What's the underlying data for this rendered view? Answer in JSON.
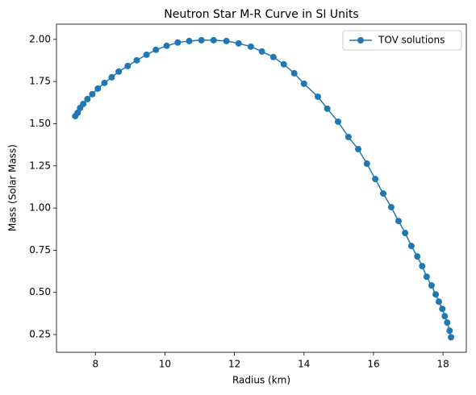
{
  "chart_data": {
    "type": "line",
    "title": "Neutron Star M-R Curve in SI Units",
    "xlabel": "Radius (km)",
    "ylabel": "Mass (Solar Mass)",
    "x": [
      7.42,
      7.49,
      7.56,
      7.65,
      7.77,
      7.91,
      8.07,
      8.26,
      8.47,
      8.67,
      8.93,
      9.19,
      9.47,
      9.74,
      10.05,
      10.37,
      10.7,
      11.05,
      11.4,
      11.77,
      12.12,
      12.47,
      12.79,
      13.12,
      13.42,
      13.72,
      14.0,
      14.4,
      14.67,
      14.98,
      15.28,
      15.56,
      15.81,
      16.05,
      16.28,
      16.51,
      16.72,
      16.91,
      17.09,
      17.26,
      17.4,
      17.53,
      17.67,
      17.79,
      17.88,
      17.98,
      18.05,
      18.12,
      18.19,
      18.23
    ],
    "series": [
      {
        "name": "TOV solutions",
        "color": "#1f77b4",
        "values": [
          1.545,
          1.565,
          1.593,
          1.617,
          1.646,
          1.675,
          1.708,
          1.742,
          1.775,
          1.809,
          1.842,
          1.876,
          1.909,
          1.938,
          1.962,
          1.981,
          1.99,
          1.995,
          1.995,
          1.99,
          1.976,
          1.957,
          1.928,
          1.895,
          1.852,
          1.799,
          1.737,
          1.66,
          1.589,
          1.512,
          1.421,
          1.349,
          1.263,
          1.172,
          1.086,
          1.005,
          0.923,
          0.852,
          0.775,
          0.713,
          0.656,
          0.593,
          0.541,
          0.488,
          0.445,
          0.402,
          0.359,
          0.321,
          0.273,
          0.234
        ]
      }
    ],
    "xlim": [
      6.88,
      18.67
    ],
    "ylim": [
      0.145,
      2.09
    ],
    "xticks": [
      8,
      10,
      12,
      14,
      16,
      18
    ],
    "yticks": [
      0.25,
      {
        "value": 0.5,
        "label": "0.50"
      },
      0.75,
      {
        "value": 1,
        "label": "1.00"
      },
      1.25,
      {
        "value": 1.5,
        "label": "1.50"
      },
      1.75,
      {
        "value": 2,
        "label": "2.00"
      }
    ],
    "legend": "upper right",
    "grid": false
  }
}
